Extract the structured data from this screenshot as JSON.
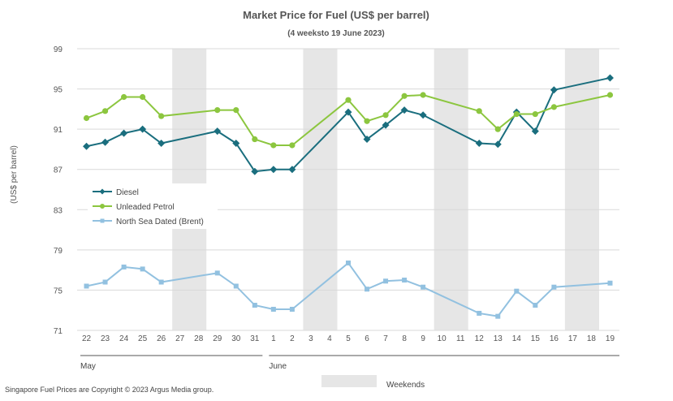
{
  "chart_data": {
    "type": "line",
    "title": "Market Price for Fuel (US$ per barrel)",
    "subtitle": "(4 weeksto 19 June 2023)",
    "ylabel": "(US$ per barrel)",
    "ylim": [
      71,
      99
    ],
    "yticks": [
      71,
      75,
      79,
      83,
      87,
      91,
      95,
      99
    ],
    "grid": true,
    "categories": [
      "22",
      "23",
      "24",
      "25",
      "26",
      "27",
      "28",
      "29",
      "30",
      "31",
      "1",
      "2",
      "3",
      "4",
      "5",
      "6",
      "7",
      "8",
      "9",
      "10",
      "11",
      "12",
      "13",
      "14",
      "15",
      "16",
      "17",
      "18",
      "19"
    ],
    "months": [
      {
        "label": "May",
        "start": 0,
        "end": 9
      },
      {
        "label": "June",
        "start": 10,
        "end": 28
      }
    ],
    "weekends": [
      [
        5,
        6
      ],
      [
        12,
        13
      ],
      [
        19,
        20
      ],
      [
        26,
        27
      ]
    ],
    "weekend_label": "Weekends",
    "series": [
      {
        "name": "Diesel",
        "color": "#1a6e7e",
        "marker": "diamond",
        "values": [
          89.3,
          89.7,
          90.6,
          91.0,
          89.6,
          null,
          null,
          90.8,
          89.6,
          86.8,
          87.0,
          87.0,
          null,
          null,
          92.7,
          90.0,
          91.4,
          92.9,
          92.4,
          null,
          null,
          89.6,
          89.5,
          92.7,
          90.8,
          94.9,
          null,
          null,
          96.1
        ]
      },
      {
        "name": "Unleaded Petrol",
        "color": "#8cc63f",
        "marker": "circle",
        "values": [
          92.1,
          92.8,
          94.2,
          94.2,
          92.3,
          null,
          null,
          92.9,
          92.9,
          90.0,
          89.4,
          89.4,
          null,
          null,
          93.9,
          91.8,
          92.4,
          94.3,
          94.4,
          null,
          null,
          92.8,
          91.0,
          92.5,
          92.5,
          93.2,
          null,
          null,
          94.4
        ]
      },
      {
        "name": "North Sea Dated (Brent)",
        "color": "#92c1e0",
        "marker": "square",
        "values": [
          75.4,
          75.8,
          77.3,
          77.1,
          75.8,
          null,
          null,
          76.7,
          75.4,
          73.5,
          73.1,
          73.1,
          null,
          null,
          77.7,
          75.1,
          75.9,
          76.0,
          75.3,
          null,
          null,
          72.7,
          72.4,
          74.9,
          73.5,
          75.3,
          null,
          null,
          75.7
        ]
      }
    ]
  },
  "footer": {
    "copyright": "Singapore Fuel Prices are Copyright © 2023 Argus Media group."
  }
}
